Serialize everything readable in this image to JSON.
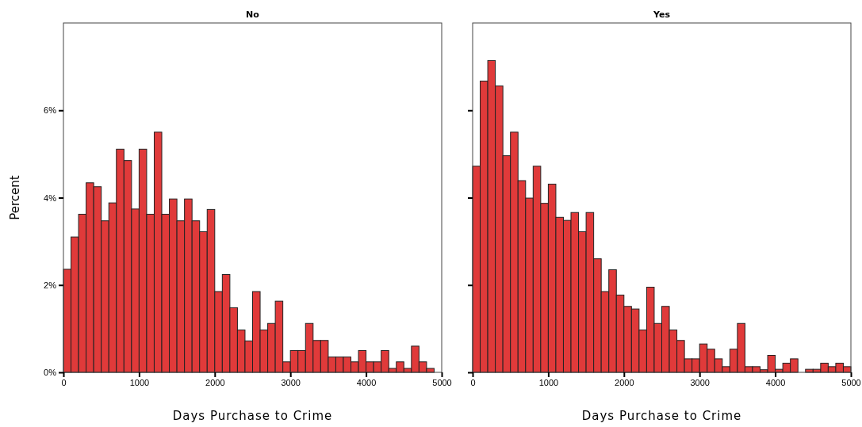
{
  "chart_data": [
    {
      "type": "histogram",
      "title": "No",
      "xlabel": "Days Purchase to Crime",
      "ylabel": "Percent",
      "color": "#e03a3a",
      "bins": [
        0,
        100,
        200,
        300,
        400,
        500,
        600,
        700,
        800,
        900,
        1000,
        1100,
        1200,
        1300,
        1400,
        1500,
        1600,
        1700,
        1800,
        1900,
        2000,
        2100,
        2200,
        2300,
        2400,
        2500,
        2600,
        2700,
        2800,
        2900,
        3000,
        3100,
        3200,
        3300,
        3400,
        3500,
        3600,
        3700,
        3800,
        3900,
        4000,
        4100,
        4200,
        4300,
        4400,
        4500,
        4600,
        4700,
        4800,
        4900,
        5000
      ],
      "values": [
        2.36,
        3.1,
        3.62,
        4.34,
        4.25,
        3.47,
        3.88,
        5.11,
        4.85,
        3.74,
        5.11,
        3.62,
        5.5,
        3.62,
        3.97,
        3.47,
        3.97,
        3.47,
        3.22,
        3.73,
        1.85,
        2.24,
        1.48,
        0.97,
        0.72,
        1.85,
        0.97,
        1.12,
        1.63,
        0.24,
        0.5,
        0.5,
        1.12,
        0.73,
        0.73,
        0.35,
        0.35,
        0.35,
        0.24,
        0.5,
        0.24,
        0.24,
        0.5,
        0.09,
        0.24,
        0.09,
        0.6,
        0.24,
        0.09,
        0
      ],
      "xlim": [
        0,
        5000
      ],
      "xticks": [
        0,
        1000,
        2000,
        3000,
        4000,
        5000
      ],
      "ylim": [
        0,
        8
      ],
      "yticks": [
        {
          "value": 0,
          "label": "0%"
        },
        {
          "value": 2,
          "label": "2%"
        },
        {
          "value": 4,
          "label": "4%"
        },
        {
          "value": 6,
          "label": "6%"
        }
      ]
    },
    {
      "type": "histogram",
      "title": "Yes",
      "xlabel": "Days Purchase to Crime",
      "color": "#e03a3a",
      "bins": [
        0,
        100,
        200,
        300,
        400,
        500,
        600,
        700,
        800,
        900,
        1000,
        1100,
        1200,
        1300,
        1400,
        1500,
        1600,
        1700,
        1800,
        1900,
        2000,
        2100,
        2200,
        2300,
        2400,
        2500,
        2600,
        2700,
        2800,
        2900,
        3000,
        3100,
        3200,
        3300,
        3400,
        3500,
        3600,
        3700,
        3800,
        3900,
        4000,
        4100,
        4200,
        4300,
        4400,
        4500,
        4600,
        4700,
        4800,
        4900,
        5000
      ],
      "values": [
        4.72,
        6.67,
        7.14,
        6.56,
        4.96,
        5.5,
        4.39,
        3.99,
        4.72,
        3.87,
        4.31,
        3.55,
        3.48,
        3.66,
        3.22,
        3.66,
        2.6,
        1.85,
        2.35,
        1.77,
        1.51,
        1.45,
        0.97,
        1.95,
        1.12,
        1.51,
        0.97,
        0.73,
        0.31,
        0.31,
        0.65,
        0.53,
        0.31,
        0.13,
        0.53,
        1.12,
        0.13,
        0.13,
        0.06,
        0.39,
        0.07,
        0.21,
        0.31,
        0,
        0.07,
        0.07,
        0.21,
        0.13,
        0.21,
        0.13
      ],
      "xlim": [
        0,
        5000
      ],
      "xticks": [
        0,
        1000,
        2000,
        3000,
        4000,
        5000
      ],
      "ylim": [
        0,
        8
      ],
      "yticks": [
        0,
        2,
        4,
        6
      ],
      "tick_labels": "x"
    }
  ]
}
